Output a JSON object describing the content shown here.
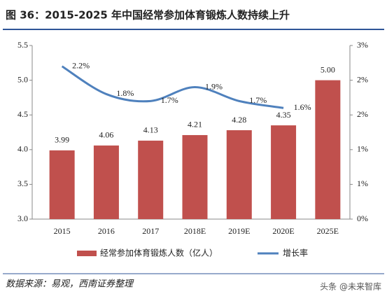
{
  "chart_data": {
    "type": "bar",
    "title": "图 36：2015-2025 年中国经常参加体育锻炼人数持续上升",
    "categories": [
      "2015",
      "2016",
      "2017",
      "2018E",
      "2019E",
      "2020E",
      "2025E"
    ],
    "series": [
      {
        "name": "经常参加体育锻炼人数（亿人）",
        "color": "#c0504d",
        "type": "bar",
        "values": [
          3.99,
          4.06,
          4.13,
          4.21,
          4.28,
          4.35,
          5.0
        ],
        "value_labels": [
          "3.99",
          "4.06",
          "4.13",
          "4.21",
          "4.28",
          "4.35",
          "5.00"
        ]
      },
      {
        "name": "增长率",
        "color": "#4f81bd",
        "type": "line",
        "axis": "y2",
        "values": [
          2.2,
          1.8,
          1.7,
          1.9,
          1.7,
          1.6,
          null
        ],
        "value_labels": [
          "2.2%",
          "1.8%",
          "1.7%",
          "1.9%",
          "1.7%",
          "1.6%",
          null
        ]
      }
    ],
    "ylim": [
      3.0,
      5.5
    ],
    "yticks": [
      {
        "value": 3.0,
        "label": "3.0"
      },
      3.5,
      {
        "value": 4.0,
        "label": "4.0"
      },
      4.5,
      {
        "value": 5.0,
        "label": "5.0"
      },
      5.5
    ],
    "y2lim": [
      0,
      2.5
    ],
    "y2ticks": [
      {
        "value": 0,
        "label": "0%"
      },
      {
        "value": 0.5,
        "label": "1%"
      },
      {
        "value": 1.0,
        "label": "1%"
      },
      {
        "value": 1.5,
        "label": "2%"
      },
      {
        "value": 2.0,
        "label": "2%"
      },
      {
        "value": 2.5,
        "label": "3%"
      }
    ],
    "source": "数据来源：易观，西南证券整理",
    "watermark": "头条 @未来智库"
  }
}
